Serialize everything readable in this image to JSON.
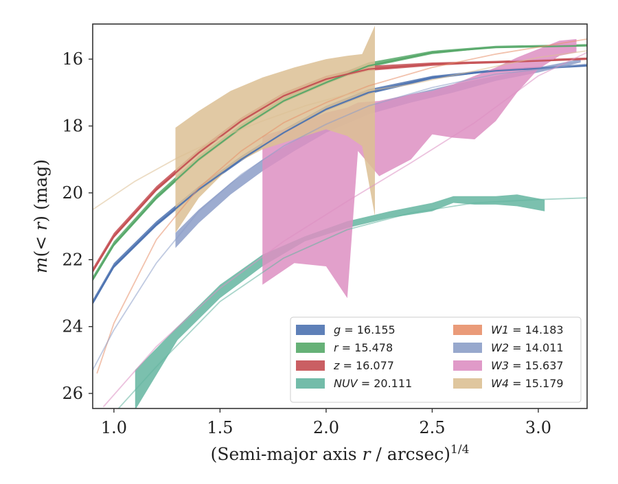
{
  "chart_data": {
    "type": "area",
    "xlabel": "(Semi-major axis r / arcsec)",
    "xlabel_superscript": "1/4",
    "ylabel": "m(< r) (mag)",
    "xlim": [
      0.9,
      3.23
    ],
    "ylim": [
      26.45,
      14.95
    ],
    "y_inverted": true,
    "xticks": [
      1.0,
      1.5,
      2.0,
      2.5,
      3.0
    ],
    "xtick_labels": [
      "1.0",
      "1.5",
      "2.0",
      "2.5",
      "3.0"
    ],
    "yticks": [
      16,
      18,
      20,
      22,
      24,
      26
    ],
    "ytick_labels": [
      "16",
      "18",
      "20",
      "22",
      "24",
      "26"
    ],
    "grid": false,
    "legend_placement": "lower-right",
    "series": [
      {
        "key": "g",
        "band": "g",
        "value": "16.155",
        "color": "#4c72b0",
        "band_x": [
          0.9,
          1.0,
          1.2,
          1.4,
          1.6,
          1.8,
          2.0,
          2.2,
          2.5,
          2.8,
          3.23
        ],
        "band_lo": [
          23.35,
          22.25,
          21.0,
          19.95,
          19.05,
          18.25,
          17.55,
          17.05,
          16.6,
          16.35,
          16.2
        ],
        "band_hi": [
          23.2,
          22.1,
          20.85,
          19.8,
          18.9,
          18.1,
          17.4,
          16.9,
          16.5,
          16.3,
          16.15
        ],
        "model_x": [
          0.9,
          1.0,
          1.2,
          1.4,
          1.6,
          1.8,
          2.0,
          2.2,
          2.5,
          2.8,
          3.23
        ],
        "model_y": [
          23.3,
          22.2,
          20.95,
          19.9,
          19.0,
          18.2,
          17.5,
          17.0,
          16.55,
          16.35,
          16.2
        ]
      },
      {
        "key": "r",
        "band": "r",
        "value": "15.478",
        "color": "#55a868",
        "band_x": [
          0.9,
          1.0,
          1.2,
          1.4,
          1.6,
          1.8,
          2.0,
          2.2,
          2.5,
          2.8,
          3.23
        ],
        "band_lo": [
          22.65,
          21.6,
          20.2,
          19.05,
          18.1,
          17.3,
          16.75,
          16.25,
          15.85,
          15.65,
          15.6
        ],
        "band_hi": [
          22.5,
          21.45,
          20.05,
          18.9,
          17.95,
          17.15,
          16.6,
          16.1,
          15.75,
          15.6,
          15.55
        ],
        "model_x": [
          0.9,
          1.0,
          1.2,
          1.4,
          1.6,
          1.8,
          2.0,
          2.2,
          2.5,
          2.8,
          3.23
        ],
        "model_y": [
          22.6,
          21.55,
          20.15,
          19.0,
          18.05,
          17.25,
          16.7,
          16.2,
          15.8,
          15.65,
          15.6
        ]
      },
      {
        "key": "z",
        "band": "z",
        "value": "16.077",
        "color": "#c44e52",
        "band_x": [
          0.9,
          1.0,
          1.2,
          1.4,
          1.6,
          1.8,
          2.0,
          2.2,
          2.5,
          2.8,
          3.23
        ],
        "band_lo": [
          22.4,
          21.35,
          19.95,
          18.85,
          17.9,
          17.15,
          16.65,
          16.35,
          16.2,
          16.1,
          16.0
        ],
        "band_hi": [
          22.25,
          21.2,
          19.8,
          18.7,
          17.75,
          17.0,
          16.5,
          16.2,
          16.1,
          16.05,
          15.95
        ],
        "model_x": [
          0.9,
          1.0,
          1.2,
          1.4,
          1.6,
          1.8,
          2.0,
          2.2,
          2.5,
          2.8,
          3.23
        ],
        "model_y": [
          22.35,
          21.3,
          19.9,
          18.8,
          17.85,
          17.1,
          16.6,
          16.3,
          16.15,
          16.1,
          16.0
        ]
      },
      {
        "key": "NUV",
        "band": "NUV",
        "value": "20.111",
        "color": "#64b5a0",
        "band_x": [
          1.1,
          1.3,
          1.5,
          1.7,
          1.9,
          2.1,
          2.3,
          2.5,
          2.6,
          2.7,
          2.8,
          2.9,
          3.03
        ],
        "band_lo": [
          26.5,
          24.4,
          23.15,
          22.2,
          21.45,
          21.05,
          20.75,
          20.55,
          20.3,
          20.35,
          20.35,
          20.4,
          20.55
        ],
        "band_hi": [
          25.3,
          24.0,
          22.75,
          21.85,
          21.3,
          20.85,
          20.55,
          20.3,
          20.1,
          20.1,
          20.1,
          20.05,
          20.2
        ],
        "model_x": [
          0.9,
          1.2,
          1.5,
          1.8,
          2.1,
          2.4,
          2.7,
          3.0,
          3.23
        ],
        "model_y": [
          27.3,
          25.2,
          23.25,
          21.95,
          21.1,
          20.6,
          20.3,
          20.2,
          20.15
        ]
      },
      {
        "key": "W1",
        "band": "W1",
        "value": "14.183",
        "color": "#e8906a",
        "band_x": [],
        "band_lo": [],
        "band_hi": [],
        "model_x": [
          0.92,
          1.0,
          1.2,
          1.4,
          1.6,
          1.8,
          2.0,
          2.2,
          2.5,
          2.8,
          3.23
        ],
        "model_y": [
          25.4,
          23.9,
          21.4,
          19.85,
          18.75,
          17.9,
          17.3,
          16.8,
          16.25,
          15.85,
          15.4
        ]
      },
      {
        "key": "W2",
        "band": "W2",
        "value": "14.011",
        "color": "#8c9ec8",
        "band_x": [
          1.29,
          1.4,
          1.55,
          1.7,
          1.85,
          2.0,
          2.2,
          2.4,
          2.6,
          2.8,
          3.0,
          3.2
        ],
        "band_lo": [
          21.65,
          20.9,
          20.05,
          19.35,
          18.75,
          18.2,
          17.65,
          17.3,
          17.0,
          16.65,
          16.4,
          16.1
        ],
        "band_hi": [
          21.2,
          20.5,
          19.7,
          19.0,
          18.45,
          17.9,
          17.4,
          17.05,
          16.75,
          16.5,
          16.25,
          16.0
        ],
        "model_x": [
          0.9,
          1.0,
          1.2,
          1.4,
          1.6,
          1.8,
          2.0,
          2.2,
          2.5,
          2.8,
          3.23
        ],
        "model_y": [
          25.3,
          24.1,
          22.1,
          20.55,
          19.45,
          18.6,
          17.95,
          17.4,
          16.85,
          16.45,
          16.15
        ]
      },
      {
        "key": "W3",
        "band": "W3",
        "value": "15.637",
        "color": "#dd8fc2",
        "band_x": [
          1.7,
          1.85,
          2.0,
          2.1,
          2.15,
          2.25,
          2.4,
          2.5,
          2.6,
          2.7,
          2.8,
          2.9,
          3.0,
          3.1,
          3.18
        ],
        "band_lo": [
          22.75,
          22.1,
          22.2,
          23.15,
          18.75,
          19.5,
          19.0,
          18.25,
          18.35,
          18.4,
          17.85,
          17.0,
          16.3,
          15.9,
          15.8
        ],
        "band_hi": [
          18.3,
          18.0,
          17.6,
          17.45,
          17.3,
          17.25,
          17.05,
          16.95,
          16.75,
          16.5,
          16.25,
          15.95,
          15.7,
          15.45,
          15.4
        ],
        "model_x": [
          0.95,
          1.2,
          1.5,
          1.8,
          2.1,
          2.4,
          2.7,
          3.0,
          3.23
        ],
        "model_y": [
          26.4,
          24.6,
          22.85,
          21.45,
          20.25,
          19.1,
          17.9,
          16.5,
          15.8
        ]
      },
      {
        "key": "W4",
        "band": "W4",
        "value": "15.179",
        "color": "#dcc094",
        "band_x": [
          1.29,
          1.4,
          1.55,
          1.7,
          1.85,
          2.0,
          2.1,
          2.17,
          2.23
        ],
        "band_lo": [
          21.2,
          20.15,
          19.2,
          18.7,
          18.4,
          18.1,
          18.3,
          18.6,
          20.7
        ],
        "band_hi": [
          18.05,
          17.55,
          16.95,
          16.55,
          16.25,
          16.0,
          15.9,
          15.85,
          15.0
        ],
        "model_x": [
          0.9,
          1.1,
          1.3,
          1.5,
          1.7,
          1.9,
          2.1,
          2.4,
          2.7,
          3.0,
          3.23
        ],
        "model_y": [
          20.5,
          19.65,
          18.95,
          18.35,
          17.85,
          17.4,
          17.05,
          16.75,
          16.35,
          15.95,
          15.75
        ]
      }
    ],
    "legend": [
      {
        "band": "g",
        "value": "16.155",
        "color": "#4c72b0"
      },
      {
        "band": "W1",
        "value": "14.183",
        "color": "#e8906a"
      },
      {
        "band": "r",
        "value": "15.478",
        "color": "#55a868"
      },
      {
        "band": "W2",
        "value": "14.011",
        "color": "#8c9ec8"
      },
      {
        "band": "z",
        "value": "16.077",
        "color": "#c44e52"
      },
      {
        "band": "W3",
        "value": "15.637",
        "color": "#dd8fc2"
      },
      {
        "band": "NUV",
        "value": "20.111",
        "color": "#64b5a0"
      },
      {
        "band": "W4",
        "value": "15.179",
        "color": "#dcc094"
      }
    ]
  }
}
